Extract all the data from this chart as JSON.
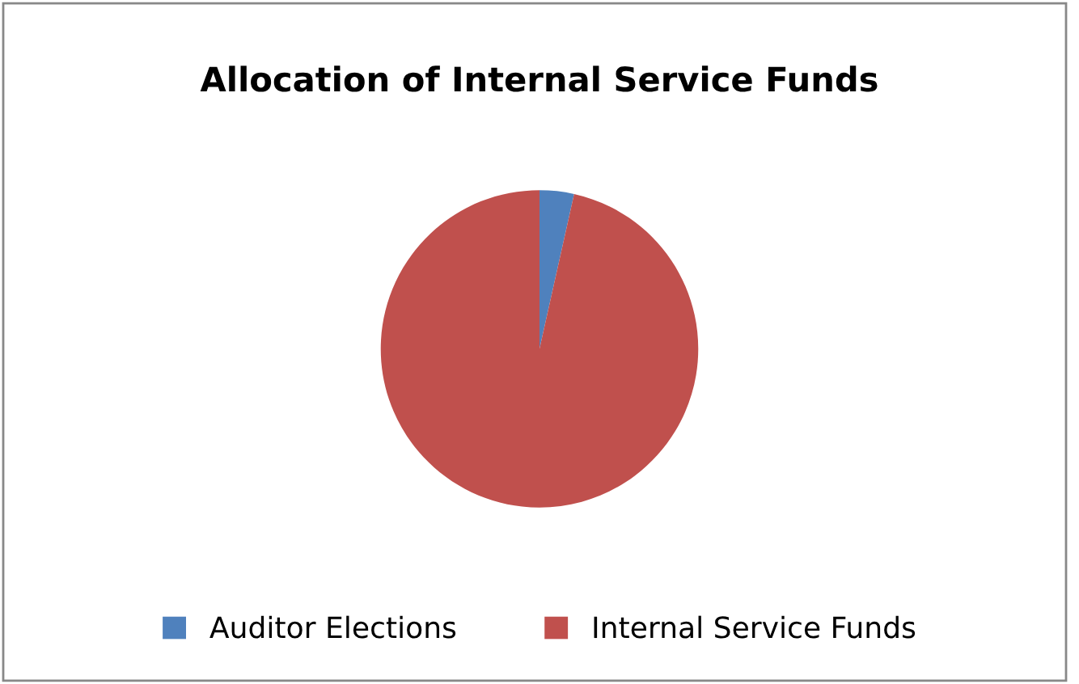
{
  "chart_data": {
    "type": "pie",
    "title": "Allocation of Internal Service Funds",
    "categories": [
      "Auditor Elections",
      "Internal Service Funds"
    ],
    "values": [
      3.5,
      96.5
    ],
    "colors": [
      "#4f81bd",
      "#c0504d"
    ],
    "legend": "bottom"
  }
}
